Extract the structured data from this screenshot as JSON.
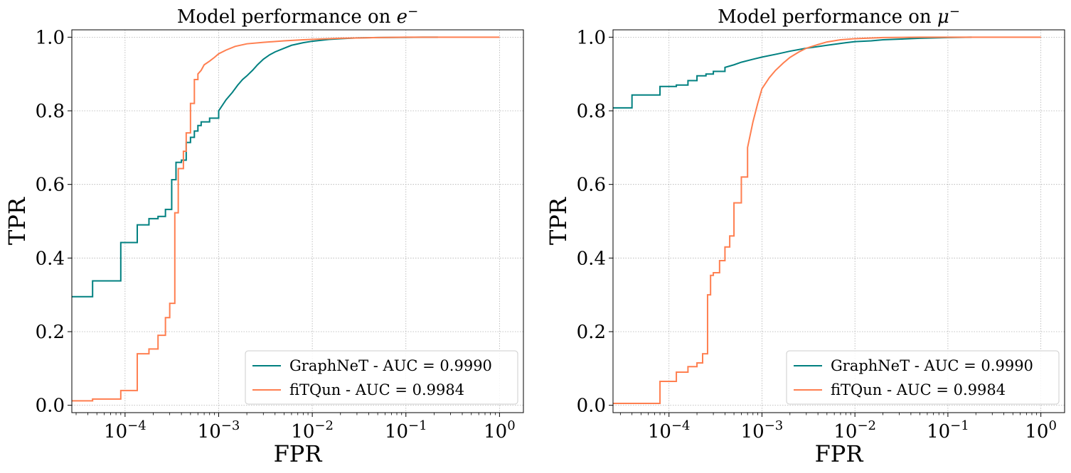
{
  "chart_data": [
    {
      "type": "line",
      "title": "Model performance on e⁻",
      "title_text": "Model performance on",
      "title_symbol": "e",
      "xlabel": "FPR",
      "ylabel": "TPR",
      "xscale": "log",
      "xlim": [
        2.7e-05,
        1.8
      ],
      "ylim": [
        -0.02,
        1.02
      ],
      "grid": true,
      "legend_position": "lower-right",
      "yticks": [
        0.0,
        0.2,
        0.4,
        0.6,
        0.8,
        1.0
      ],
      "ytick_labels": [
        "0.0",
        "0.2",
        "0.4",
        "0.6",
        "0.8",
        "1.0"
      ],
      "xticks": [
        0.0001,
        0.001,
        0.01,
        0.1,
        1
      ],
      "xtick_bases": [
        "10",
        "10",
        "10",
        "10",
        "10"
      ],
      "xtick_exps": [
        "−4",
        "−3",
        "−2",
        "−1",
        "0"
      ],
      "series": [
        {
          "name": "GraphNeT - AUC = 0.9990",
          "color": "#008080",
          "x": [
            2.7e-05,
            4.5e-05,
            4.5e-05,
            9e-05,
            9e-05,
            0.000135,
            0.000135,
            0.00018,
            0.00018,
            0.000225,
            0.000225,
            0.00027,
            0.00027,
            0.000315,
            0.000315,
            0.00035,
            0.00035,
            0.0004,
            0.0004,
            0.00045,
            0.00045,
            0.0005,
            0.0005,
            0.00055,
            0.00055,
            0.0006,
            0.0006,
            0.00065,
            0.00065,
            0.0008,
            0.0008,
            0.001,
            0.001,
            0.0012,
            0.0014,
            0.0016,
            0.0018,
            0.002,
            0.0023,
            0.0026,
            0.003,
            0.0035,
            0.004,
            0.005,
            0.006,
            0.008,
            0.01,
            0.015,
            0.02,
            0.03,
            0.05,
            0.1,
            0.15,
            0.22
          ],
          "y": [
            0.295,
            0.295,
            0.338,
            0.338,
            0.442,
            0.442,
            0.49,
            0.49,
            0.507,
            0.507,
            0.513,
            0.513,
            0.532,
            0.532,
            0.613,
            0.613,
            0.66,
            0.66,
            0.666,
            0.666,
            0.714,
            0.714,
            0.728,
            0.728,
            0.745,
            0.745,
            0.76,
            0.76,
            0.77,
            0.77,
            0.78,
            0.78,
            0.8,
            0.83,
            0.85,
            0.87,
            0.885,
            0.895,
            0.91,
            0.925,
            0.94,
            0.952,
            0.96,
            0.97,
            0.978,
            0.985,
            0.989,
            0.994,
            0.996,
            0.998,
            0.999,
            0.9995,
            1.0,
            1.0
          ]
        },
        {
          "name": "fiTQun - AUC = 0.9984",
          "color": "#FF7F50",
          "x": [
            2.7e-05,
            4.5e-05,
            4.5e-05,
            9e-05,
            9e-05,
            0.000135,
            0.000135,
            0.00018,
            0.00018,
            0.000225,
            0.000225,
            0.00027,
            0.00027,
            0.0003,
            0.0003,
            0.00034,
            0.00034,
            0.00037,
            0.00037,
            0.00042,
            0.00042,
            0.00045,
            0.00045,
            0.0005,
            0.0005,
            0.00055,
            0.00055,
            0.0006,
            0.0006,
            0.00065,
            0.0007,
            0.0008,
            0.0009,
            0.001,
            0.0012,
            0.0015,
            0.002,
            0.003,
            0.005,
            0.008,
            0.012,
            0.02,
            0.05,
            0.1,
            0.3,
            1.0
          ],
          "y": [
            0.012,
            0.012,
            0.017,
            0.017,
            0.04,
            0.04,
            0.14,
            0.14,
            0.153,
            0.153,
            0.19,
            0.19,
            0.238,
            0.238,
            0.277,
            0.277,
            0.523,
            0.523,
            0.643,
            0.643,
            0.69,
            0.69,
            0.74,
            0.74,
            0.82,
            0.82,
            0.885,
            0.885,
            0.9,
            0.91,
            0.925,
            0.935,
            0.945,
            0.955,
            0.965,
            0.975,
            0.982,
            0.986,
            0.99,
            0.993,
            0.995,
            0.997,
            0.999,
            1.0,
            1.0,
            1.0
          ]
        }
      ]
    },
    {
      "type": "line",
      "title": "Model performance on μ⁻",
      "title_text": "Model performance on",
      "title_symbol": "μ",
      "xlabel": "FPR",
      "ylabel": "TPR",
      "xscale": "log",
      "xlim": [
        2.5e-05,
        1.8
      ],
      "ylim": [
        -0.02,
        1.02
      ],
      "grid": true,
      "legend_position": "lower-right",
      "yticks": [
        0.0,
        0.2,
        0.4,
        0.6,
        0.8,
        1.0
      ],
      "ytick_labels": [
        "0.0",
        "0.2",
        "0.4",
        "0.6",
        "0.8",
        "1.0"
      ],
      "xticks": [
        0.0001,
        0.001,
        0.01,
        0.1,
        1
      ],
      "xtick_bases": [
        "10",
        "10",
        "10",
        "10",
        "10"
      ],
      "xtick_exps": [
        "−4",
        "−3",
        "−2",
        "−1",
        "0"
      ],
      "series": [
        {
          "name": "GraphNeT - AUC = 0.9990",
          "color": "#008080",
          "x": [
            2.5e-05,
            4e-05,
            4e-05,
            8e-05,
            8e-05,
            0.00012,
            0.00012,
            0.00016,
            0.00016,
            0.0002,
            0.0002,
            0.00025,
            0.00025,
            0.0003,
            0.0003,
            0.0004,
            0.0004,
            0.0005,
            0.0006,
            0.0008,
            0.001,
            0.0015,
            0.002,
            0.003,
            0.005,
            0.008,
            0.01,
            0.015,
            0.02,
            0.05,
            0.1,
            0.18
          ],
          "y": [
            0.808,
            0.808,
            0.843,
            0.843,
            0.866,
            0.866,
            0.87,
            0.87,
            0.882,
            0.882,
            0.895,
            0.895,
            0.9,
            0.9,
            0.907,
            0.907,
            0.918,
            0.925,
            0.932,
            0.94,
            0.946,
            0.955,
            0.962,
            0.97,
            0.978,
            0.985,
            0.988,
            0.99,
            0.993,
            0.997,
            0.999,
            1.0
          ]
        },
        {
          "name": "fiTQun - AUC = 0.9984",
          "color": "#FF7F50",
          "x": [
            2.5e-05,
            8e-05,
            8e-05,
            0.00012,
            0.00012,
            0.00016,
            0.00016,
            0.0002,
            0.0002,
            0.00023,
            0.00023,
            0.00026,
            0.00026,
            0.00028,
            0.00028,
            0.0003,
            0.0003,
            0.00035,
            0.00035,
            0.0004,
            0.0004,
            0.00045,
            0.00045,
            0.0005,
            0.0005,
            0.0006,
            0.0006,
            0.0007,
            0.0007,
            0.0008,
            0.0009,
            0.001,
            0.0012,
            0.0014,
            0.0017,
            0.002,
            0.0025,
            0.003,
            0.004,
            0.005,
            0.007,
            0.01,
            0.02,
            0.05,
            1.0
          ],
          "y": [
            0.005,
            0.005,
            0.065,
            0.065,
            0.09,
            0.09,
            0.105,
            0.105,
            0.115,
            0.115,
            0.14,
            0.14,
            0.3,
            0.3,
            0.353,
            0.353,
            0.36,
            0.36,
            0.393,
            0.393,
            0.43,
            0.43,
            0.46,
            0.46,
            0.55,
            0.55,
            0.62,
            0.62,
            0.7,
            0.77,
            0.82,
            0.86,
            0.89,
            0.91,
            0.93,
            0.945,
            0.96,
            0.97,
            0.98,
            0.987,
            0.993,
            0.996,
            0.999,
            1.0,
            1.0
          ]
        }
      ]
    }
  ]
}
